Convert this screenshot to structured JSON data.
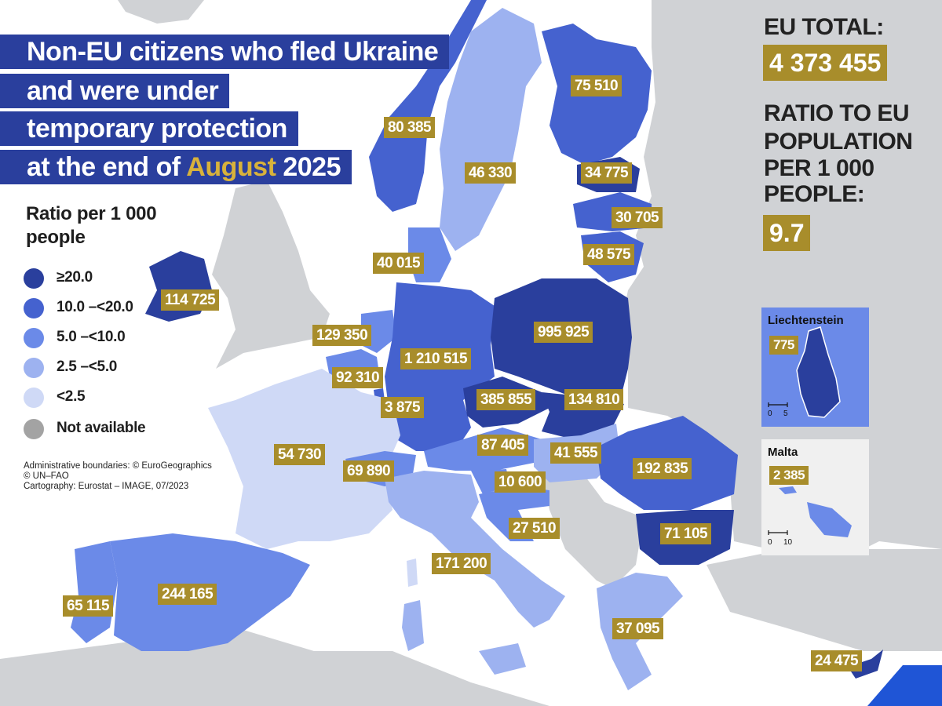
{
  "title": {
    "line1": "Non-EU citizens who fled Ukraine",
    "line2": "and were under",
    "line3": "temporary protection",
    "line4_prefix": "at the end of ",
    "line4_month": "August",
    "line4_suffix": " 2025"
  },
  "legend": {
    "title": "Ratio per 1 000 people",
    "items": [
      {
        "label": "≥20.0",
        "color": "#2a3f9d"
      },
      {
        "label": "10.0 –<20.0",
        "color": "#4562cf"
      },
      {
        "label": "5.0 –<10.0",
        "color": "#6b8ae8"
      },
      {
        "label": "2.5 –<5.0",
        "color": "#9db2f0"
      },
      {
        "label": "<2.5",
        "color": "#cfd9f6"
      },
      {
        "label": "Not available",
        "color": "#a3a3a3"
      }
    ]
  },
  "credits": {
    "line1": "Administrative boundaries: © EuroGeographics",
    "line2": "© UN–FAO",
    "line3": "Cartography: Eurostat – IMAGE, 07/2023"
  },
  "summary": {
    "eu_total_label": "EU TOTAL:",
    "eu_total_value": "4 373 455",
    "ratio_label_1": "RATIO TO EU",
    "ratio_label_2": "POPULATION",
    "ratio_label_3": "PER 1 000",
    "ratio_label_4": "PEOPLE:",
    "ratio_value": "9.7"
  },
  "insets": {
    "liechtenstein": {
      "title": "Liechtenstein",
      "value": "775",
      "scale_0": "0",
      "scale_max": "5"
    },
    "malta": {
      "title": "Malta",
      "value": "2 385",
      "scale_0": "0",
      "scale_max": "10"
    }
  },
  "countries": [
    {
      "id": "finland",
      "value": "75 510"
    },
    {
      "id": "norway",
      "value": "80 385"
    },
    {
      "id": "sweden",
      "value": "46 330"
    },
    {
      "id": "estonia",
      "value": "34 775"
    },
    {
      "id": "latvia",
      "value": "30 705"
    },
    {
      "id": "lithuania",
      "value": "48 575"
    },
    {
      "id": "denmark",
      "value": "40 015"
    },
    {
      "id": "ireland",
      "value": "114 725"
    },
    {
      "id": "netherlands",
      "value": "129 350"
    },
    {
      "id": "belgium",
      "value": "92 310"
    },
    {
      "id": "luxembourg",
      "value": "3 875"
    },
    {
      "id": "germany",
      "value": "1 210 515"
    },
    {
      "id": "poland",
      "value": "995 925"
    },
    {
      "id": "czechia",
      "value": "385 855"
    },
    {
      "id": "slovakia",
      "value": "134 810"
    },
    {
      "id": "france",
      "value": "54 730"
    },
    {
      "id": "switzerland",
      "value": "69 890"
    },
    {
      "id": "austria",
      "value": "87 405"
    },
    {
      "id": "hungary",
      "value": "41 555"
    },
    {
      "id": "slovenia",
      "value": "10 600"
    },
    {
      "id": "croatia",
      "value": "27 510"
    },
    {
      "id": "romania",
      "value": "192 835"
    },
    {
      "id": "bulgaria",
      "value": "71 105"
    },
    {
      "id": "italy",
      "value": "171 200"
    },
    {
      "id": "portugal",
      "value": "65 115"
    },
    {
      "id": "spain",
      "value": "244 165"
    },
    {
      "id": "greece",
      "value": "37 095"
    },
    {
      "id": "cyprus",
      "value": "24 475"
    }
  ]
}
